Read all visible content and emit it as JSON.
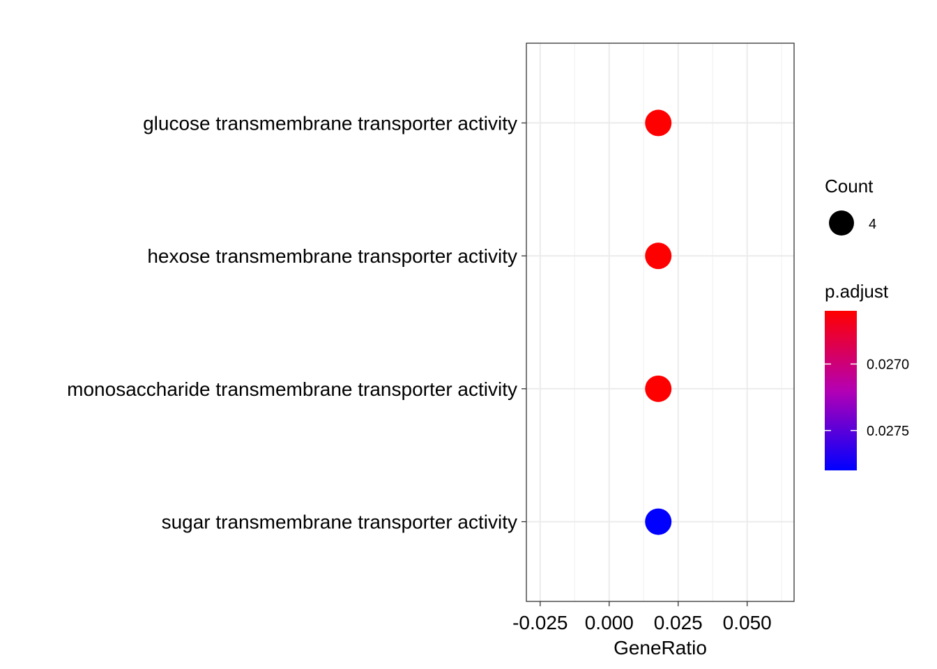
{
  "chart_data": {
    "type": "scatter",
    "title": "",
    "xlabel": "GeneRatio",
    "ylabel": "",
    "xlim": [
      -0.03,
      0.067
    ],
    "x_ticks": [
      -0.025,
      0.0,
      0.025,
      0.05
    ],
    "x_tick_labels": [
      "-0.025",
      "0.000",
      "0.025",
      "0.050"
    ],
    "grid": true,
    "categories": [
      "glucose transmembrane transporter activity",
      "hexose transmembrane transporter activity",
      "monosaccharide transmembrane transporter activity",
      "sugar transmembrane transporter activity"
    ],
    "points": [
      {
        "term": "glucose transmembrane transporter activity",
        "gene_ratio": 0.0178,
        "count": 4,
        "p_adjust": 0.0266
      },
      {
        "term": "hexose transmembrane transporter activity",
        "gene_ratio": 0.0178,
        "count": 4,
        "p_adjust": 0.0266
      },
      {
        "term": "monosaccharide transmembrane transporter activity",
        "gene_ratio": 0.0178,
        "count": 4,
        "p_adjust": 0.0266
      },
      {
        "term": "sugar transmembrane transporter activity",
        "gene_ratio": 0.0178,
        "count": 4,
        "p_adjust": 0.0278
      }
    ],
    "legend_placement": "right",
    "size_legend": {
      "title": "Count",
      "values": [
        4
      ],
      "labels": [
        "4"
      ]
    },
    "color_legend": {
      "title": "p.adjust",
      "range": [
        0.0266,
        0.0278
      ],
      "ticks": [
        0.027,
        0.0275
      ],
      "tick_labels": [
        "0.0270",
        "0.0275"
      ],
      "low_color": "#ff0000",
      "high_color": "#0000ff"
    }
  }
}
